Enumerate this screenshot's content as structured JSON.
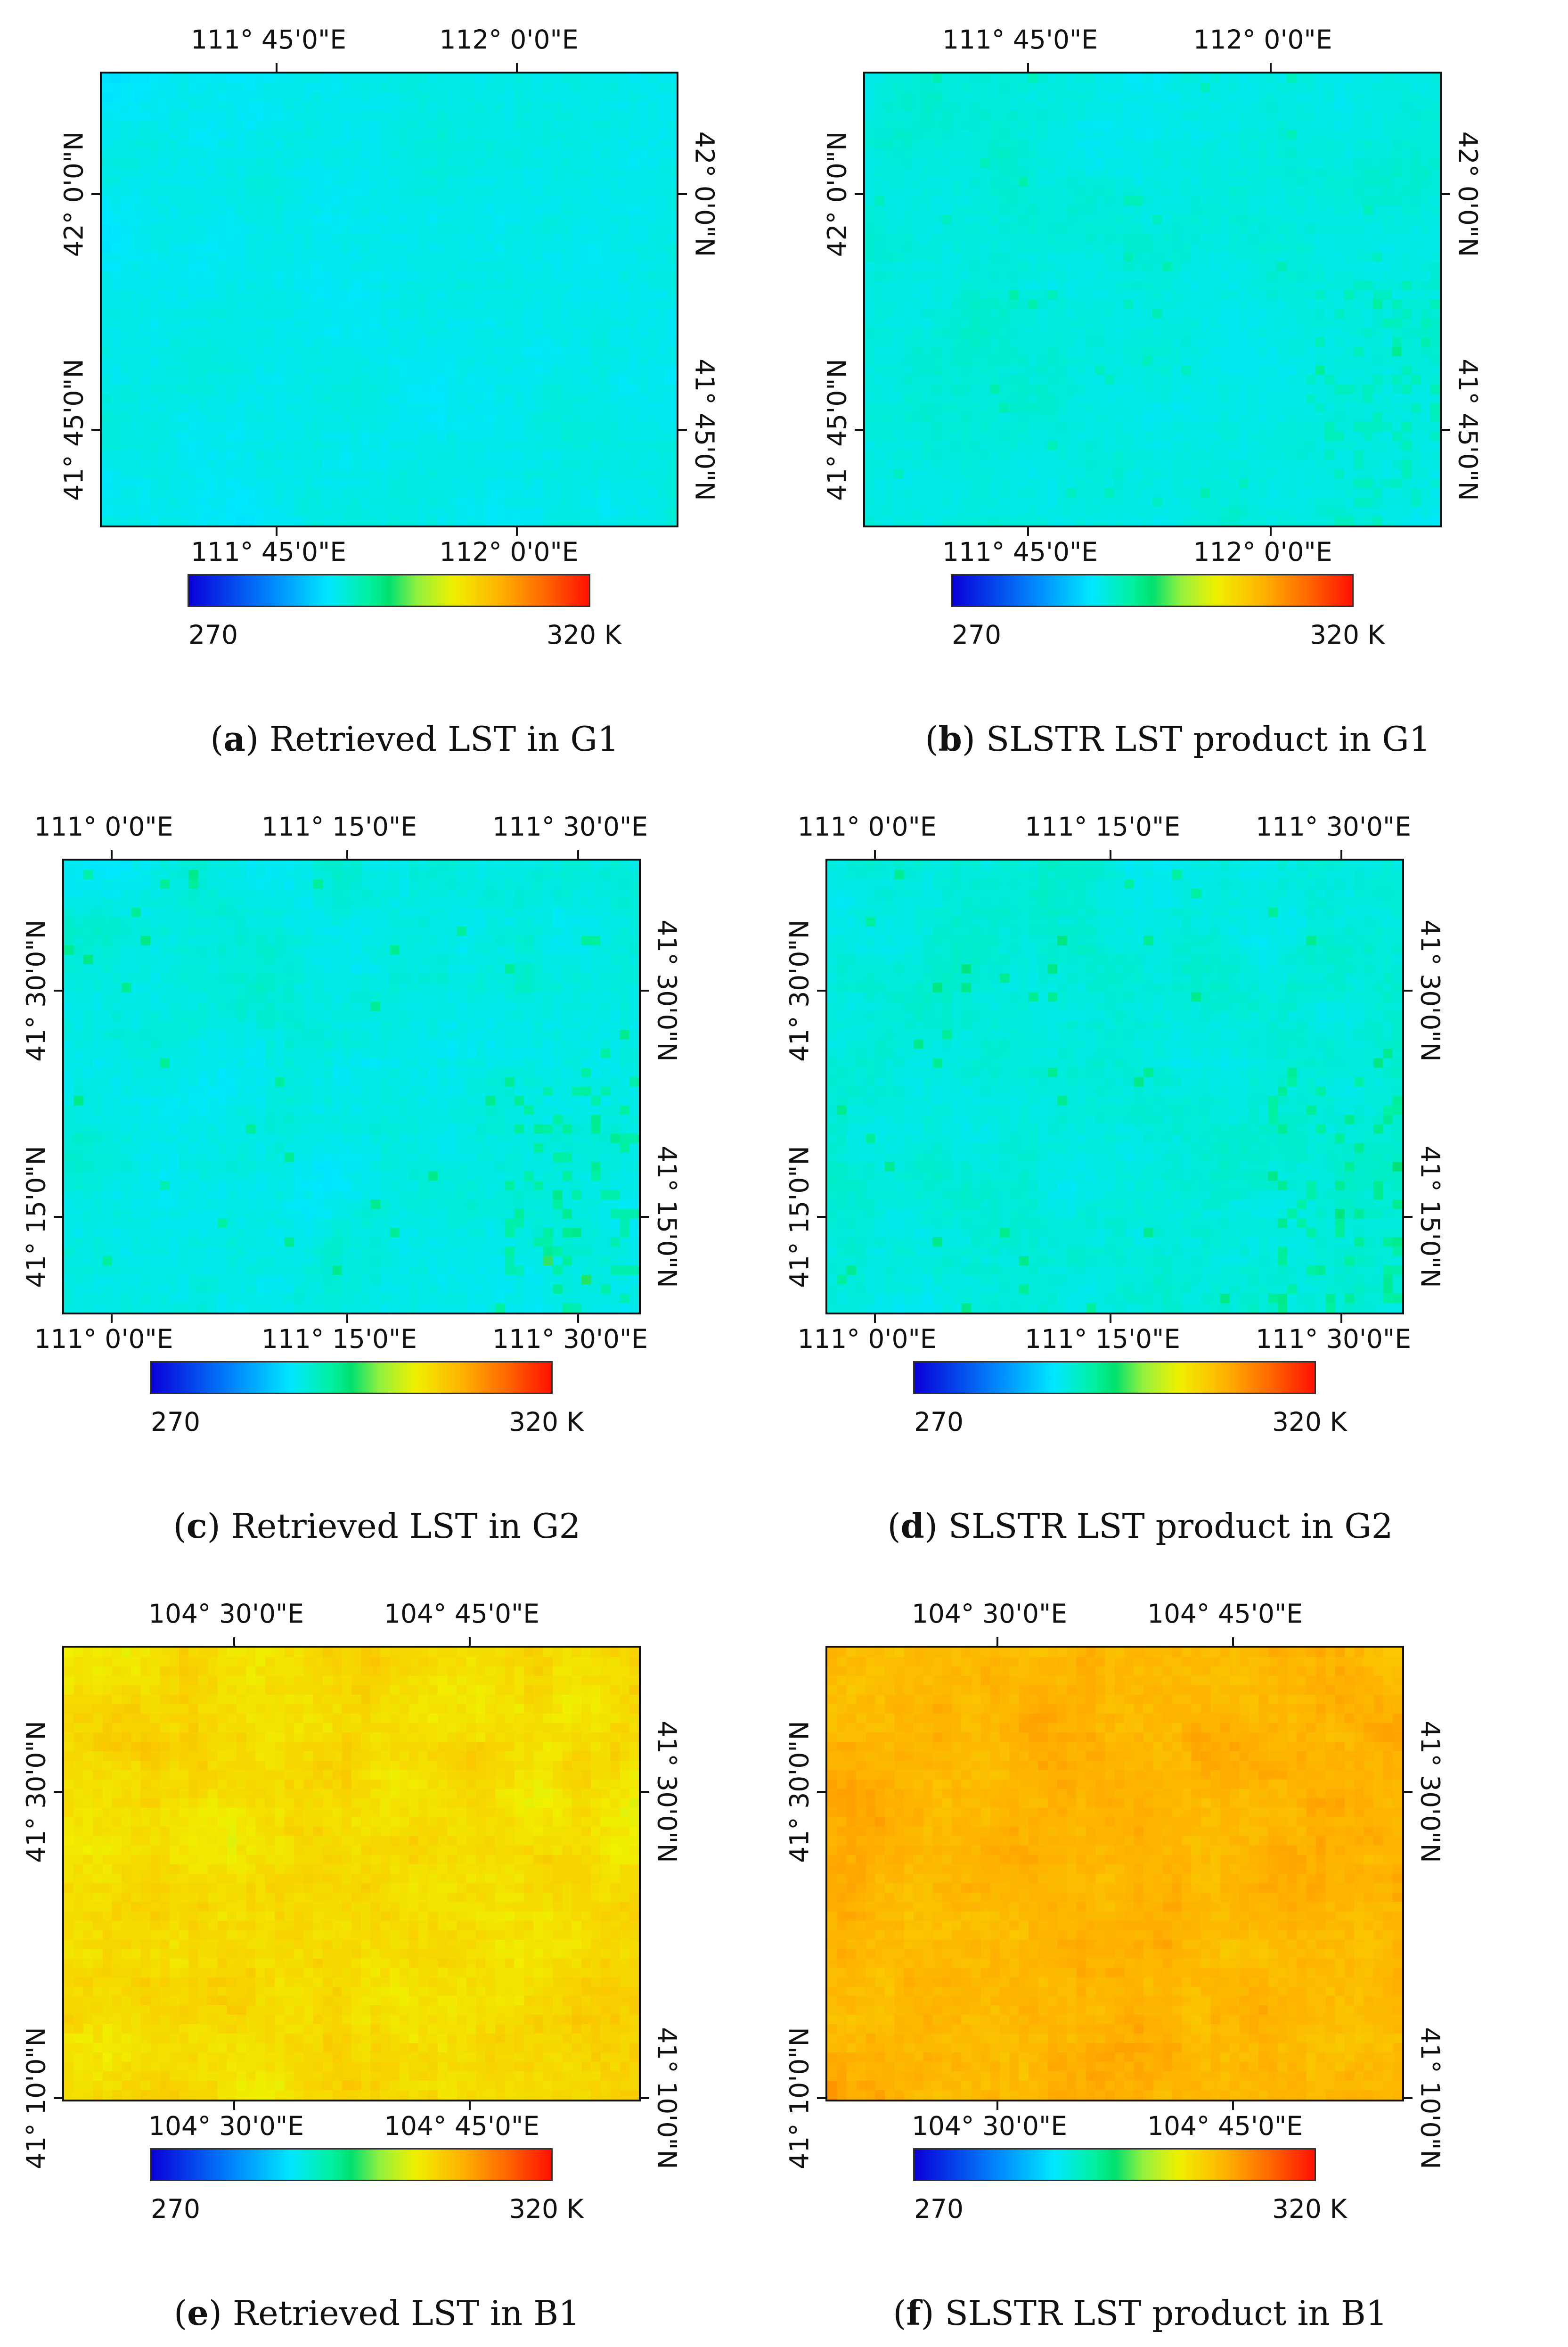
{
  "colorbar": {
    "min_label": "270",
    "max_label": "320 K",
    "min_value": 270,
    "max_value": 320
  },
  "panels": [
    {
      "letter": "a",
      "caption_text": "Retrieved LST in G1",
      "x_labels": [
        "111° 45'0\"E",
        "112° 0'0\"E"
      ],
      "y_labels": [
        "42° 0'0\"N",
        "41° 45'0\"N"
      ],
      "base_temp_K": 288.5,
      "variation_K": 1.2,
      "hot_patch_K": 0,
      "seed": 11
    },
    {
      "letter": "b",
      "caption_text": "SLSTR LST product in G1",
      "x_labels": [
        "111° 45'0\"E",
        "112° 0'0\"E"
      ],
      "y_labels": [
        "42° 0'0\"N",
        "41° 45'0\"N"
      ],
      "base_temp_K": 289.2,
      "variation_K": 1.3,
      "hot_patch_K": 2,
      "seed": 23
    },
    {
      "letter": "c",
      "caption_text": "Retrieved LST in G2",
      "x_labels": [
        "111° 0'0\"E",
        "111° 15'0\"E",
        "111° 30'0\"E"
      ],
      "y_labels": [
        "41° 30'0\"N",
        "41° 15'0\"N"
      ],
      "base_temp_K": 289.0,
      "variation_K": 1.6,
      "hot_patch_K": 4,
      "seed": 37
    },
    {
      "letter": "d",
      "caption_text": "SLSTR LST product in G2",
      "x_labels": [
        "111° 0'0\"E",
        "111° 15'0\"E",
        "111° 30'0\"E"
      ],
      "y_labels": [
        "41° 30'0\"N",
        "41° 15'0\"N"
      ],
      "base_temp_K": 289.3,
      "variation_K": 1.6,
      "hot_patch_K": 4,
      "seed": 51
    },
    {
      "letter": "e",
      "caption_text": "Retrieved LST in B1",
      "x_labels": [
        "104° 30'0\"E",
        "104° 45'0\"E"
      ],
      "y_labels": [
        "41° 30'0\"N",
        "41° 10'0\"N"
      ],
      "base_temp_K": 305.0,
      "variation_K": 2.5,
      "hot_patch_K": 0,
      "seed": 67
    },
    {
      "letter": "f",
      "caption_text": "SLSTR LST product in B1",
      "x_labels": [
        "104° 30'0\"E",
        "104° 45'0\"E"
      ],
      "y_labels": [
        "41° 30'0\"N",
        "41° 10'0\"N"
      ],
      "base_temp_K": 308.5,
      "variation_K": 2.2,
      "hot_patch_K": 0,
      "seed": 79
    }
  ]
}
